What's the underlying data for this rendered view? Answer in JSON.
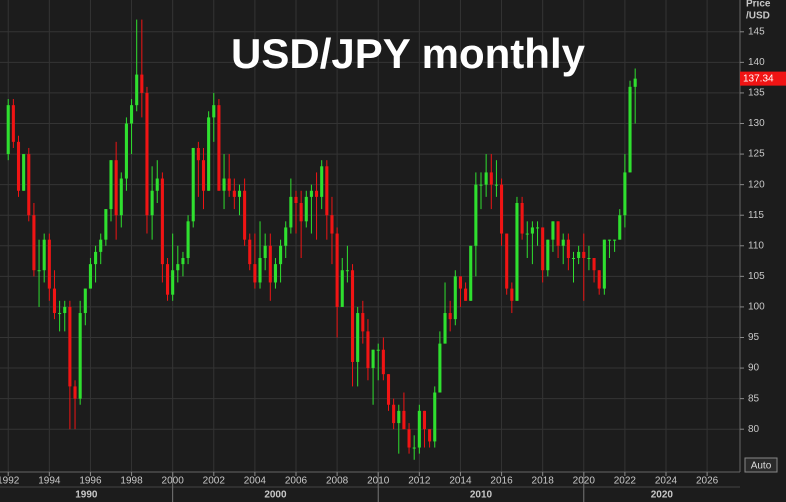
{
  "chart_data": {
    "type": "candlestick",
    "title": "USD/JPY monthly",
    "y_axis_title": [
      "Price",
      "/USD"
    ],
    "up_color": "#2fe02f",
    "down_color": "#f01414",
    "xlim": [
      1991.6,
      2027.6
    ],
    "ylim": [
      73,
      150.2
    ],
    "xticks": [
      1992,
      1994,
      1996,
      1998,
      2000,
      2002,
      2004,
      2006,
      2008,
      2010,
      2012,
      2014,
      2016,
      2018,
      2020,
      2022,
      2024,
      2026
    ],
    "yticks": [
      80,
      85,
      90,
      95,
      100,
      105,
      110,
      115,
      120,
      125,
      130,
      135,
      140,
      145
    ],
    "decade_ticks": [
      2000,
      2010,
      2020
    ],
    "decades": [
      "1990",
      "2000",
      "2010",
      "2020"
    ],
    "grid": true,
    "x": [
      1992,
      1992.25,
      1992.5,
      1992.75,
      1993,
      1993.25,
      1993.5,
      1993.75,
      1994,
      1994.25,
      1994.5,
      1994.75,
      1995,
      1995.25,
      1995.5,
      1995.75,
      1996,
      1996.25,
      1996.5,
      1996.75,
      1997,
      1997.25,
      1997.5,
      1997.75,
      1998,
      1998.25,
      1998.5,
      1998.75,
      1999,
      1999.25,
      1999.5,
      1999.75,
      2000,
      2000.25,
      2000.5,
      2000.75,
      2001,
      2001.25,
      2001.5,
      2001.75,
      2002,
      2002.25,
      2002.5,
      2002.75,
      2003,
      2003.25,
      2003.5,
      2003.75,
      2004,
      2004.25,
      2004.5,
      2004.75,
      2005,
      2005.25,
      2005.5,
      2005.75,
      2006,
      2006.25,
      2006.5,
      2006.75,
      2007,
      2007.25,
      2007.5,
      2007.75,
      2008,
      2008.25,
      2008.5,
      2008.75,
      2009,
      2009.25,
      2009.5,
      2009.75,
      2010,
      2010.25,
      2010.5,
      2010.75,
      2011,
      2011.25,
      2011.5,
      2011.75,
      2012,
      2012.25,
      2012.5,
      2012.75,
      2013,
      2013.25,
      2013.5,
      2013.75,
      2014,
      2014.25,
      2014.5,
      2014.75,
      2015,
      2015.25,
      2015.5,
      2015.75,
      2016,
      2016.25,
      2016.5,
      2016.75,
      2017,
      2017.25,
      2017.5,
      2017.75,
      2018,
      2018.25,
      2018.5,
      2018.75,
      2019,
      2019.25,
      2019.5,
      2019.75,
      2020,
      2020.25,
      2020.5,
      2020.75,
      2021,
      2021.25,
      2021.5,
      2021.75,
      2022,
      2022.25,
      2022.5
    ],
    "ohlc": [
      [
        125,
        134,
        124,
        133
      ],
      [
        133,
        134,
        126,
        127
      ],
      [
        127,
        128,
        118,
        119
      ],
      [
        119,
        125,
        119,
        125
      ],
      [
        125,
        126,
        114,
        115
      ],
      [
        115,
        117,
        105,
        106
      ],
      [
        106,
        111,
        100,
        106
      ],
      [
        106,
        112,
        104,
        111
      ],
      [
        111,
        112,
        101,
        103
      ],
      [
        103,
        106,
        98,
        99
      ],
      [
        99,
        101,
        96,
        99
      ],
      [
        99,
        101,
        96,
        100
      ],
      [
        100,
        101,
        80,
        87
      ],
      [
        87,
        88,
        80,
        85
      ],
      [
        85,
        101,
        84,
        99
      ],
      [
        99,
        103,
        97,
        103
      ],
      [
        103,
        108,
        103,
        107
      ],
      [
        107,
        110,
        104,
        109
      ],
      [
        109,
        112,
        107,
        111
      ],
      [
        111,
        116,
        110,
        116
      ],
      [
        116,
        124,
        114,
        124
      ],
      [
        124,
        127,
        111,
        115
      ],
      [
        115,
        122,
        113,
        121
      ],
      [
        121,
        131,
        119,
        130
      ],
      [
        130,
        134,
        125,
        133
      ],
      [
        133,
        147,
        132,
        138
      ],
      [
        138,
        147,
        131,
        135
      ],
      [
        135,
        136,
        112,
        115
      ],
      [
        115,
        123,
        111,
        119
      ],
      [
        119,
        124,
        117,
        121
      ],
      [
        121,
        122,
        104,
        107
      ],
      [
        107,
        108,
        101,
        102
      ],
      [
        102,
        112,
        101,
        106
      ],
      [
        106,
        110,
        104,
        107
      ],
      [
        107,
        109,
        105,
        108
      ],
      [
        108,
        115,
        107,
        114
      ],
      [
        114,
        126,
        113,
        126
      ],
      [
        126,
        127,
        118,
        124
      ],
      [
        124,
        126,
        116,
        119
      ],
      [
        119,
        132,
        119,
        131
      ],
      [
        131,
        135,
        127,
        133
      ],
      [
        133,
        134,
        119,
        119
      ],
      [
        119,
        125,
        116,
        121
      ],
      [
        121,
        125,
        118,
        119
      ],
      [
        119,
        121,
        116,
        118
      ],
      [
        118,
        120,
        115,
        119
      ],
      [
        119,
        121,
        110,
        111
      ],
      [
        111,
        112,
        106,
        107
      ],
      [
        107,
        112,
        103,
        104
      ],
      [
        104,
        114,
        103,
        108
      ],
      [
        108,
        112,
        106,
        110
      ],
      [
        110,
        112,
        101,
        104
      ],
      [
        104,
        108,
        103,
        107
      ],
      [
        107,
        111,
        104,
        110
      ],
      [
        110,
        114,
        108,
        113
      ],
      [
        113,
        121,
        112,
        118
      ],
      [
        118,
        119,
        112,
        117
      ],
      [
        117,
        119,
        108,
        114
      ],
      [
        114,
        119,
        113,
        118
      ],
      [
        118,
        120,
        112,
        119
      ],
      [
        119,
        122,
        111,
        118
      ],
      [
        118,
        124,
        116,
        123
      ],
      [
        123,
        124,
        111,
        115
      ],
      [
        115,
        118,
        107,
        112
      ],
      [
        112,
        113,
        95,
        100
      ],
      [
        100,
        108,
        100,
        106
      ],
      [
        106,
        110,
        104,
        106
      ],
      [
        106,
        107,
        87,
        91
      ],
      [
        91,
        100,
        87,
        99
      ],
      [
        99,
        101,
        94,
        96
      ],
      [
        96,
        98,
        88,
        90
      ],
      [
        90,
        93,
        84,
        93
      ],
      [
        93,
        94,
        88,
        93
      ],
      [
        93,
        95,
        88,
        89
      ],
      [
        89,
        89,
        83,
        84
      ],
      [
        84,
        85,
        80,
        81
      ],
      [
        81,
        84,
        76,
        83
      ],
      [
        83,
        86,
        80,
        80
      ],
      [
        80,
        81,
        76,
        77
      ],
      [
        77,
        79,
        75,
        77
      ],
      [
        77,
        84,
        76,
        83
      ],
      [
        83,
        83,
        77,
        80
      ],
      [
        80,
        80,
        77,
        78
      ],
      [
        78,
        87,
        77,
        86
      ],
      [
        86,
        96,
        86,
        94
      ],
      [
        94,
        104,
        94,
        99
      ],
      [
        99,
        101,
        96,
        98
      ],
      [
        98,
        106,
        97,
        105
      ],
      [
        105,
        105,
        100,
        103
      ],
      [
        103,
        104,
        101,
        101
      ],
      [
        101,
        110,
        101,
        110
      ],
      [
        110,
        122,
        105,
        120
      ],
      [
        120,
        122,
        116,
        120
      ],
      [
        120,
        125,
        118,
        122
      ],
      [
        122,
        125,
        116,
        120
      ],
      [
        120,
        124,
        118,
        120
      ],
      [
        120,
        121,
        110,
        112
      ],
      [
        112,
        112,
        102,
        103
      ],
      [
        103,
        104,
        99,
        101
      ],
      [
        101,
        118,
        101,
        117
      ],
      [
        117,
        118,
        111,
        112
      ],
      [
        112,
        114,
        108,
        112
      ],
      [
        112,
        114,
        107,
        113
      ],
      [
        113,
        114,
        110,
        113
      ],
      [
        113,
        113,
        104,
        106
      ],
      [
        106,
        111,
        105,
        111
      ],
      [
        111,
        114,
        109,
        114
      ],
      [
        114,
        114,
        108,
        110
      ],
      [
        110,
        112,
        107,
        111
      ],
      [
        111,
        112,
        106,
        108
      ],
      [
        108,
        109,
        104,
        108
      ],
      [
        108,
        110,
        107,
        109
      ],
      [
        109,
        112,
        101,
        108
      ],
      [
        108,
        110,
        106,
        108
      ],
      [
        108,
        108,
        104,
        106
      ],
      [
        106,
        106,
        102,
        103
      ],
      [
        103,
        111,
        102,
        111
      ],
      [
        111,
        111,
        108,
        111
      ],
      [
        111,
        111,
        109,
        111
      ],
      [
        111,
        116,
        111,
        115
      ],
      [
        115,
        125,
        113,
        122
      ],
      [
        122,
        137,
        122,
        136
      ],
      [
        136,
        139,
        130,
        137.34
      ]
    ]
  },
  "controls": {
    "auto": "Auto"
  }
}
